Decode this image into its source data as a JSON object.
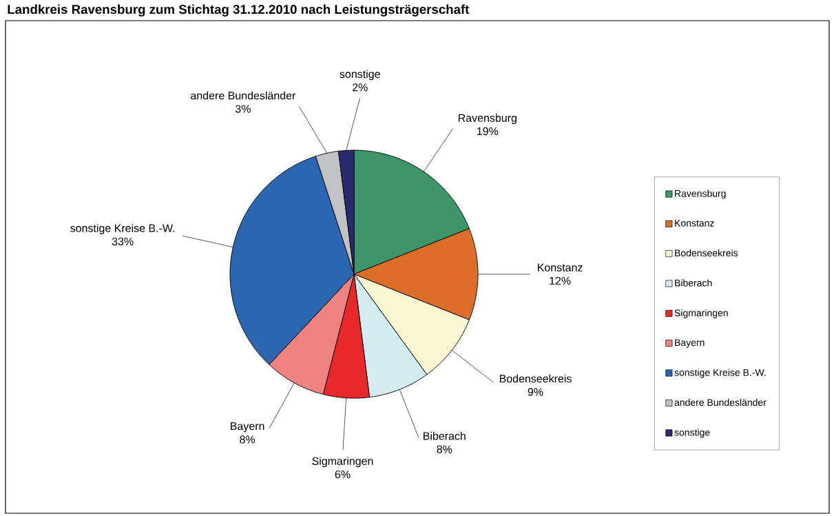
{
  "chart_data": {
    "type": "pie",
    "title": "Landkreis Ravensburg zum Stichtag 31.12.2010 nach Leistungsträgerschaft",
    "categories": [
      "Ravensburg",
      "Konstanz",
      "Bodenseekreis",
      "Biberach",
      "Sigmaringen",
      "Bayern",
      "sonstige Kreise B.-W.",
      "andere Bundesländer",
      "sonstige"
    ],
    "values": [
      19,
      12,
      9,
      8,
      6,
      8,
      33,
      3,
      2
    ],
    "value_labels": [
      "19%",
      "12%",
      "9%",
      "8%",
      "6%",
      "8%",
      "33%",
      "3%",
      "2%"
    ],
    "colors": [
      "#3e9567",
      "#dd6e29",
      "#faf8d2",
      "#d3ecf0",
      "#e8292a",
      "#f08281",
      "#2c65b0",
      "#c1c2c6",
      "#2b2a6c"
    ],
    "legend": "right"
  }
}
